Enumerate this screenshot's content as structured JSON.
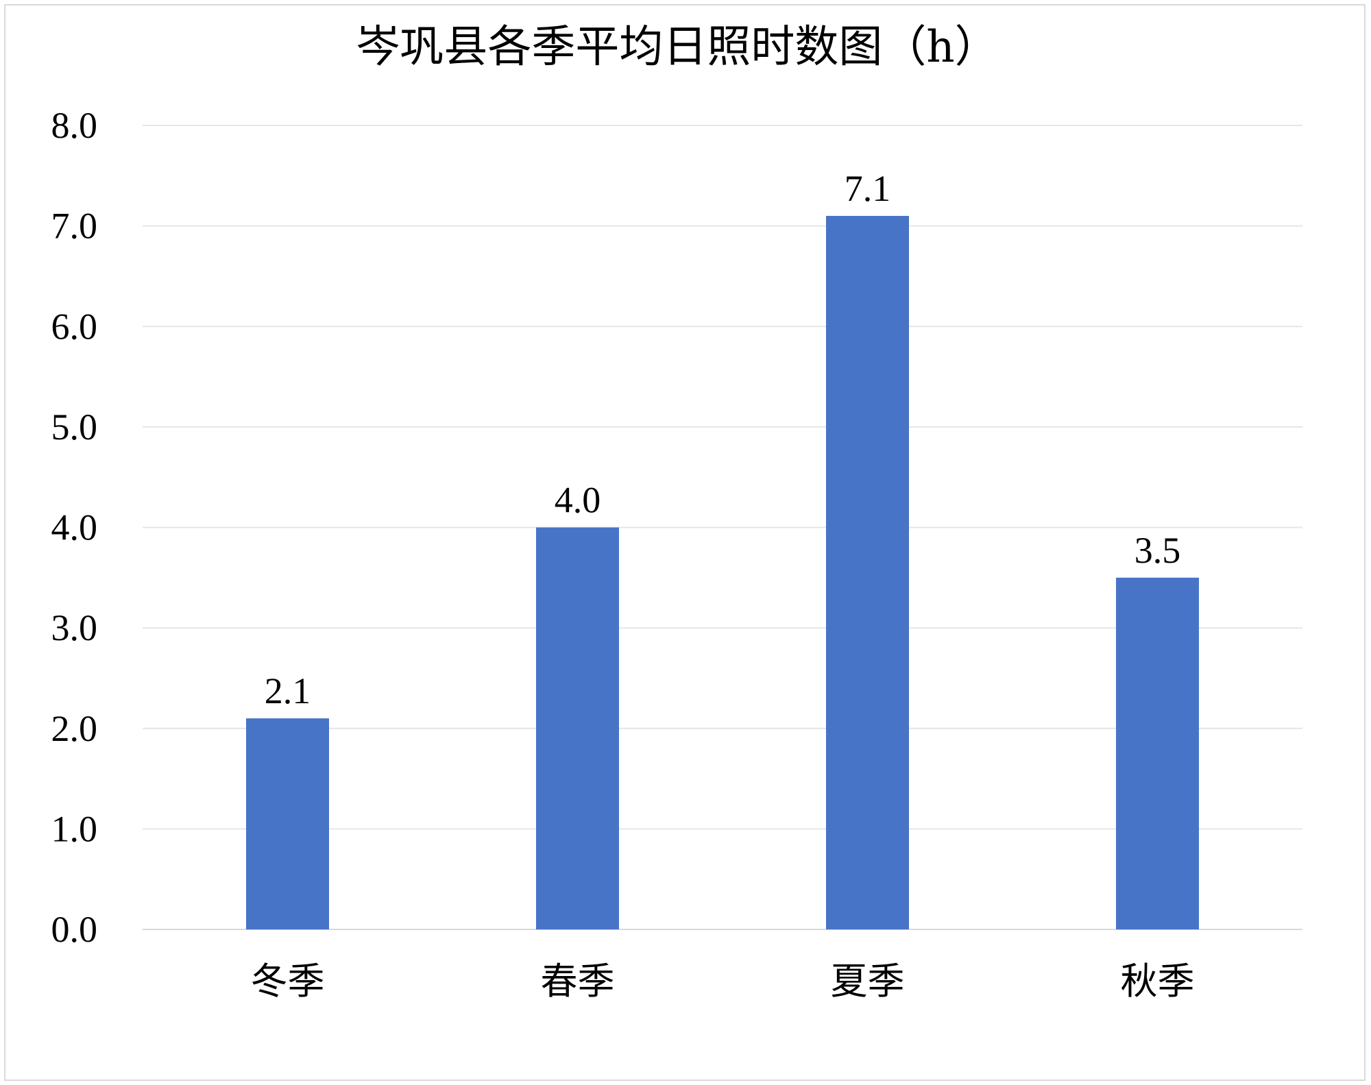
{
  "chart_data": {
    "type": "bar",
    "title": "岑巩县各季平均日照时数图（h）",
    "categories": [
      "冬季",
      "春季",
      "夏季",
      "秋季"
    ],
    "values": [
      2.1,
      4.0,
      7.1,
      3.5
    ],
    "value_labels": [
      "2.1",
      "4.0",
      "7.1",
      "3.5"
    ],
    "yticks": [
      "0.0",
      "1.0",
      "2.0",
      "3.0",
      "4.0",
      "5.0",
      "6.0",
      "7.0",
      "8.0"
    ],
    "ylim": [
      0,
      8
    ],
    "grid": true,
    "legend": "none",
    "bar_color": "#4874C8"
  }
}
